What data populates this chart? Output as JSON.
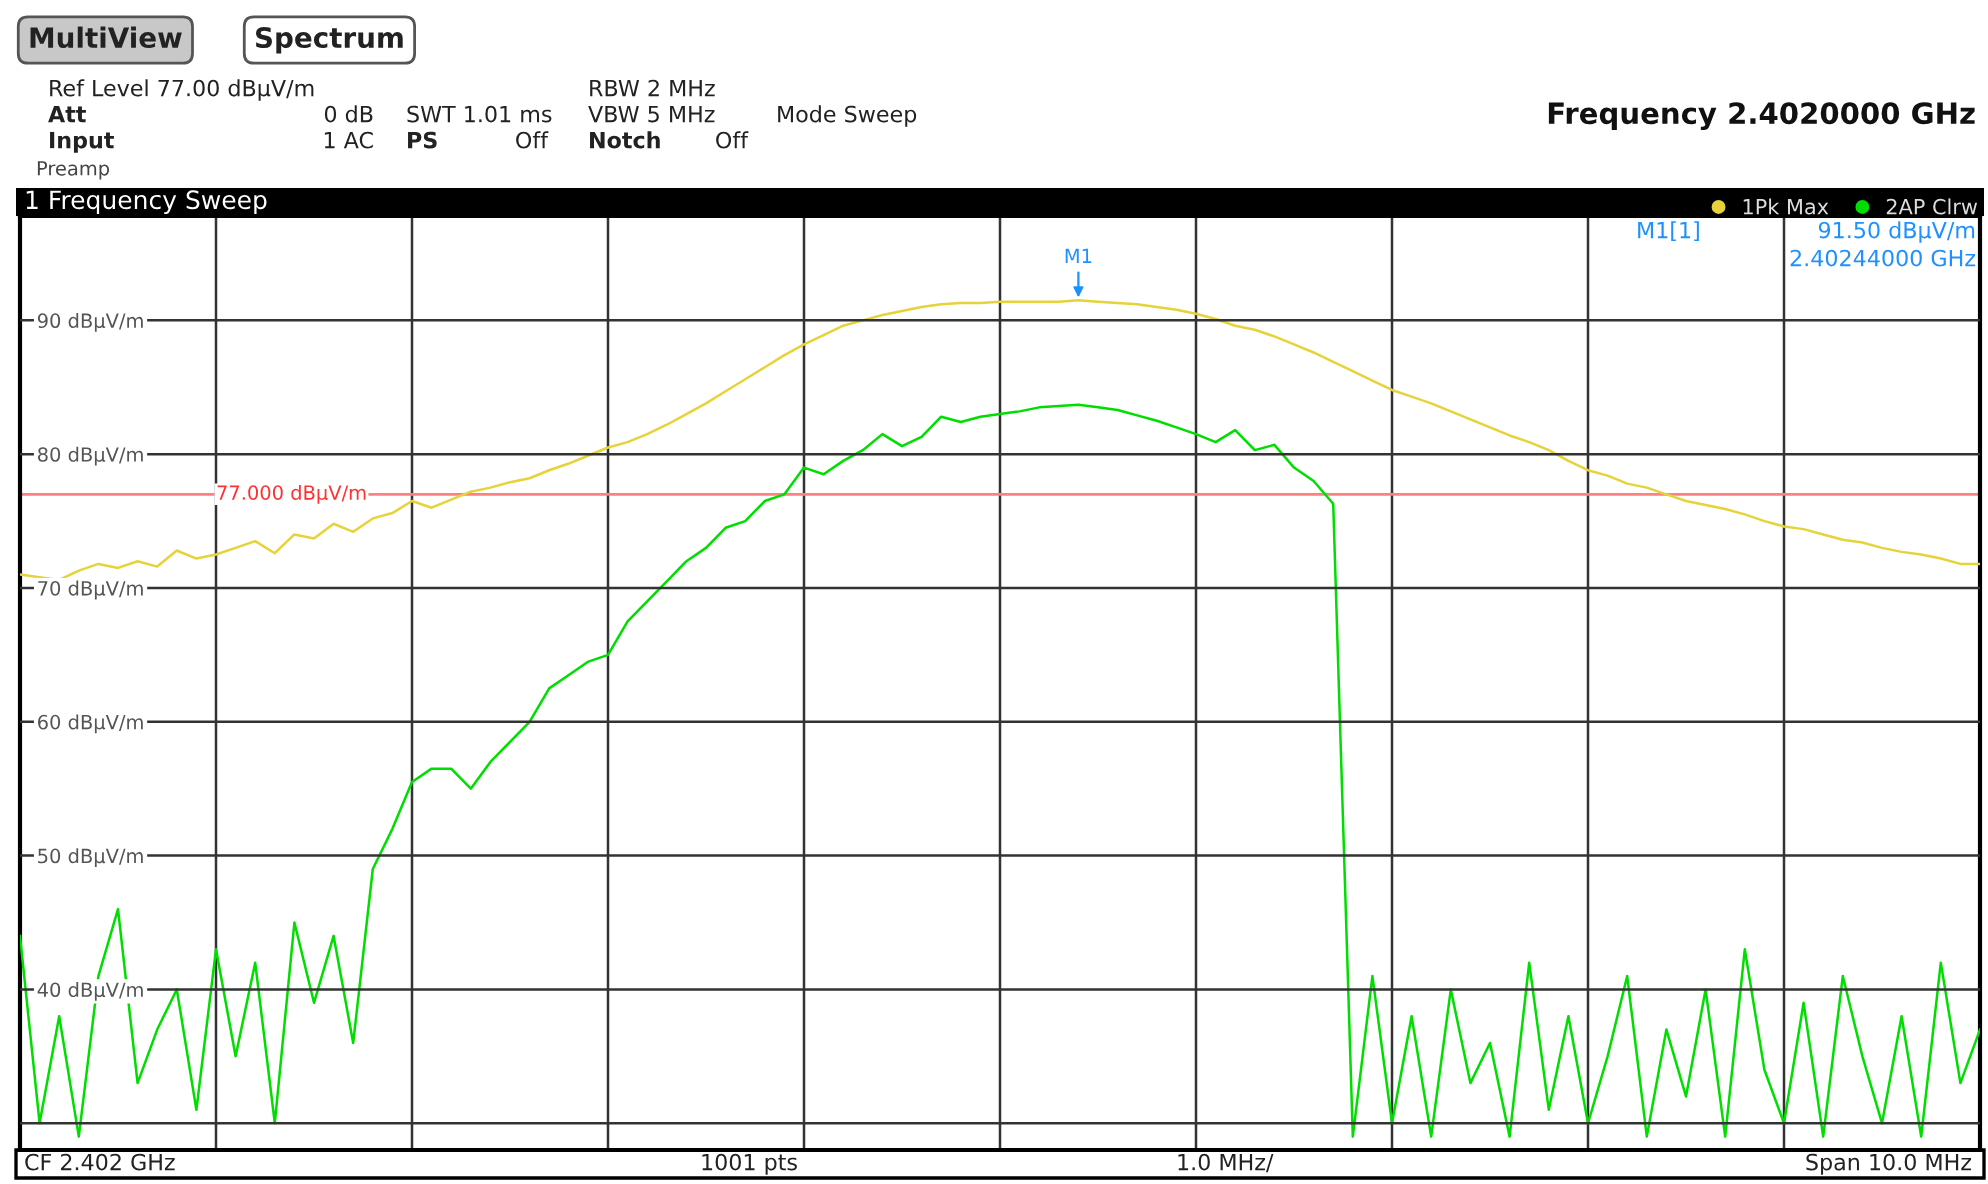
{
  "chart_data": {
    "type": "line",
    "title": "1 Frequency Sweep",
    "categories": [
      null,
      null,
      null,
      null,
      null,
      null,
      null,
      null,
      null,
      null,
      null,
      null,
      null,
      null,
      null,
      null,
      null,
      null,
      null,
      null,
      null,
      null,
      null,
      null,
      null,
      null,
      null,
      null,
      null,
      null,
      null,
      null,
      null,
      null,
      null,
      null,
      null,
      null,
      null,
      null,
      null,
      null,
      null,
      null,
      null,
      null,
      null,
      null,
      null,
      null,
      null,
      null,
      null,
      null,
      null,
      null,
      null,
      null,
      null,
      null,
      null,
      null,
      null,
      null,
      null,
      null,
      null,
      null,
      null,
      null,
      null,
      null,
      null,
      null,
      null,
      null,
      null,
      null,
      null,
      null,
      null,
      null,
      null,
      null,
      null,
      null,
      null,
      null,
      null,
      null,
      null,
      null,
      null,
      null,
      null,
      null,
      null,
      null,
      null,
      null,
      null
    ],
    "ylim": [
      28,
      97.8
    ],
    "yticks": [
      {
        "value": 30,
        "label": null
      },
      {
        "value": 40,
        "label": "40 dBµV/m"
      },
      {
        "value": 50,
        "label": "50 dBµV/m"
      },
      {
        "value": 60,
        "label": "60 dBµV/m"
      },
      {
        "value": 70,
        "label": "70 dBµV/m"
      },
      {
        "value": 80,
        "label": "80 dBµV/m"
      },
      {
        "value": 90,
        "label": "90 dBµV/m"
      }
    ],
    "grid": true,
    "legend": "top right",
    "marker": "none",
    "line_style": "solid",
    "ref_lines": [
      {
        "axis": "y",
        "value": 77,
        "label": "77.000 dBµV/m",
        "color": "#ff8080"
      }
    ],
    "series": [
      {
        "name": "1Pk Max",
        "color": "#e6d33a",
        "values": [
          71.0,
          70.8,
          70.6,
          71.3,
          71.8,
          71.5,
          72.0,
          71.6,
          72.8,
          72.2,
          72.5,
          73.0,
          73.5,
          72.6,
          74.0,
          73.7,
          74.8,
          74.2,
          75.2,
          75.6,
          76.5,
          76.0,
          76.6,
          77.2,
          77.5,
          77.9,
          78.2,
          78.8,
          79.3,
          79.9,
          80.5,
          80.9,
          81.5,
          82.2,
          83.0,
          83.8,
          84.7,
          85.6,
          86.5,
          87.4,
          88.2,
          88.9,
          89.6,
          90.0,
          90.4,
          90.7,
          91.0,
          91.2,
          91.3,
          91.3,
          91.4,
          91.4,
          91.4,
          91.4,
          91.5,
          91.4,
          91.3,
          91.2,
          91.0,
          90.8,
          90.5,
          90.1,
          89.6,
          89.3,
          88.8,
          88.2,
          87.6,
          86.9,
          86.2,
          85.5,
          84.8,
          84.3,
          83.8,
          83.2,
          82.6,
          82.0,
          81.4,
          80.9,
          80.3,
          79.5,
          78.8,
          78.4,
          77.8,
          77.5,
          77.0,
          76.5,
          76.2,
          75.9,
          75.5,
          75.0,
          74.6,
          74.4,
          74.0,
          73.6,
          73.4,
          73.0,
          72.7,
          72.5,
          72.2,
          71.8,
          71.8
        ]
      },
      {
        "name": "2AP Clrw",
        "color": "#00dd00",
        "values": [
          44,
          30,
          38,
          29,
          41,
          46,
          33,
          37,
          40,
          31,
          43,
          35,
          42,
          30,
          45,
          39,
          44,
          36,
          49,
          52,
          55.5,
          56.5,
          56.5,
          55,
          57,
          58.5,
          60,
          62.5,
          63.5,
          64.5,
          65,
          67.5,
          69,
          70.5,
          72,
          73,
          74.5,
          75,
          76.5,
          77,
          79,
          78.5,
          79.5,
          80.3,
          81.5,
          80.6,
          81.3,
          82.8,
          82.4,
          82.8,
          83,
          83.2,
          83.5,
          83.6,
          83.7,
          83.5,
          83.3,
          82.9,
          82.5,
          82.0,
          81.5,
          80.9,
          81.8,
          80.3,
          80.7,
          79,
          78,
          76.3,
          29,
          41,
          30,
          38,
          29,
          40,
          33,
          36,
          29,
          42,
          31,
          38,
          30,
          35,
          41,
          29,
          37,
          32,
          40,
          29,
          43,
          34,
          30,
          39,
          29,
          41,
          35,
          30,
          38,
          29,
          42,
          33,
          37
        ]
      }
    ],
    "annotations": [
      "MultiView",
      "Spectrum",
      "Ref Level 77.00 dBµV/m",
      "Att",
      "0 dB",
      "Input",
      "1 AC",
      "Preamp",
      "SWT 1.01 ms",
      "PS",
      "Off",
      "RBW 2 MHz",
      "VBW 5 MHz",
      "Notch",
      "Off",
      "Mode Sweep",
      "Frequency 2.4020000 GHz",
      {
        "text": "M1",
        "y": 91.5
      },
      "M1[1]",
      "91.50 dBµV/m",
      "2.40244000 GHz",
      "CF 2.402 GHz",
      "1001 pts",
      "1.0 MHz/",
      "Span 10.0 MHz"
    ]
  }
}
